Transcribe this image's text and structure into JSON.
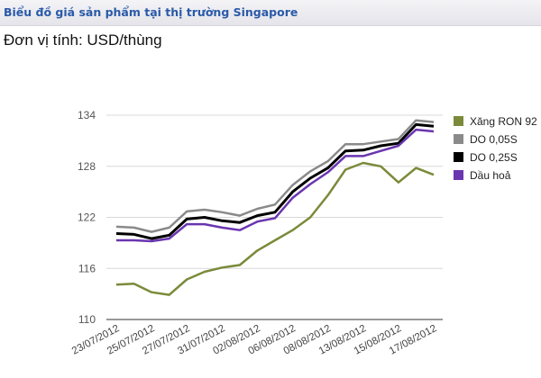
{
  "header": {
    "title": "Biểu đồ giá sản phẩm tại thị trường Singapore"
  },
  "unit_label": "Đơn vị tính: USD/thùng",
  "chart_data": {
    "type": "line",
    "title": "",
    "xlabel": "",
    "ylabel": "",
    "ylim": [
      110,
      134
    ],
    "yticks": [
      110,
      116,
      122,
      128,
      134
    ],
    "grid": true,
    "legend_position": "right",
    "categories": [
      "23/07/2012",
      "",
      "25/07/2012",
      "",
      "27/07/2012",
      "",
      "31/07/2012",
      "",
      "02/08/2012",
      "",
      "06/08/2012",
      "",
      "08/08/2012",
      "",
      "13/08/2012",
      "",
      "15/08/2012",
      "",
      "17/08/2012"
    ],
    "series": [
      {
        "name": "Xăng RON 92",
        "color": "#7a8a3a",
        "values": [
          114.1,
          114.2,
          113.2,
          112.9,
          114.7,
          115.6,
          116.1,
          116.4,
          118.1,
          119.3,
          120.5,
          122.0,
          124.6,
          127.6,
          128.4,
          128.0,
          126.1,
          127.8,
          127.0
        ]
      },
      {
        "name": "DO 0,05S",
        "color": "#8a8a8a",
        "values": [
          120.9,
          120.8,
          120.3,
          120.8,
          122.7,
          122.9,
          122.6,
          122.2,
          123.0,
          123.5,
          125.8,
          127.4,
          128.6,
          130.6,
          130.6,
          130.9,
          131.2,
          133.4,
          133.2
        ]
      },
      {
        "name": "DO 0,25S",
        "color": "#000000",
        "values": [
          120.1,
          120.0,
          119.5,
          119.9,
          121.8,
          122.0,
          121.6,
          121.4,
          122.2,
          122.6,
          125.0,
          126.6,
          127.8,
          129.8,
          129.9,
          130.4,
          130.7,
          132.9,
          132.7
        ]
      },
      {
        "name": "Dầu hoả",
        "color": "#6a35b0",
        "values": [
          119.3,
          119.3,
          119.2,
          119.5,
          121.2,
          121.2,
          120.8,
          120.5,
          121.5,
          121.9,
          124.3,
          125.9,
          127.3,
          129.2,
          129.2,
          129.8,
          130.4,
          132.3,
          132.1
        ]
      }
    ]
  }
}
